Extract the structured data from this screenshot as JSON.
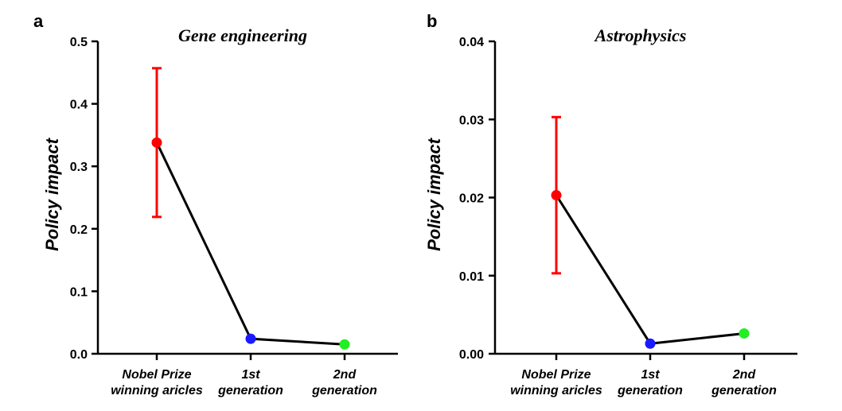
{
  "chart_data": [
    {
      "panel": "a",
      "type": "line",
      "title": "Gene engineering",
      "xlabel": "",
      "ylabel": "Policy impact",
      "categories": [
        [
          "Nobel Prize",
          "winning aricles"
        ],
        [
          "1st",
          "generation"
        ],
        [
          "2nd",
          "generation"
        ]
      ],
      "values": [
        0.338,
        0.024,
        0.015
      ],
      "error_low": [
        0.219,
        null,
        null
      ],
      "error_high": [
        0.457,
        null,
        null
      ],
      "point_colors": [
        "#ff0000",
        "#1a1aff",
        "#22ee22"
      ],
      "line_color": "#000000",
      "yticks": [
        0.0,
        0.1,
        0.2,
        0.3,
        0.4,
        0.5
      ],
      "ytick_labels": [
        "0.0",
        "0.1",
        "0.2",
        "0.3",
        "0.4",
        "0.5"
      ],
      "ylim": [
        0,
        0.5
      ],
      "grid": false
    },
    {
      "panel": "b",
      "type": "line",
      "title": "Astrophysics",
      "xlabel": "",
      "ylabel": "Policy impact",
      "categories": [
        [
          "Nobel Prize",
          "winning aricles"
        ],
        [
          "1st",
          "generation"
        ],
        [
          "2nd",
          "generation"
        ]
      ],
      "values": [
        0.0203,
        0.0013,
        0.0026
      ],
      "error_low": [
        0.0103,
        null,
        null
      ],
      "error_high": [
        0.0303,
        null,
        null
      ],
      "point_colors": [
        "#ff0000",
        "#1a1aff",
        "#22ee22"
      ],
      "line_color": "#000000",
      "yticks": [
        0.0,
        0.01,
        0.02,
        0.03,
        0.04
      ],
      "ytick_labels": [
        "0.00",
        "0.01",
        "0.02",
        "0.03",
        "0.04"
      ],
      "ylim": [
        0,
        0.04
      ],
      "grid": false
    }
  ]
}
